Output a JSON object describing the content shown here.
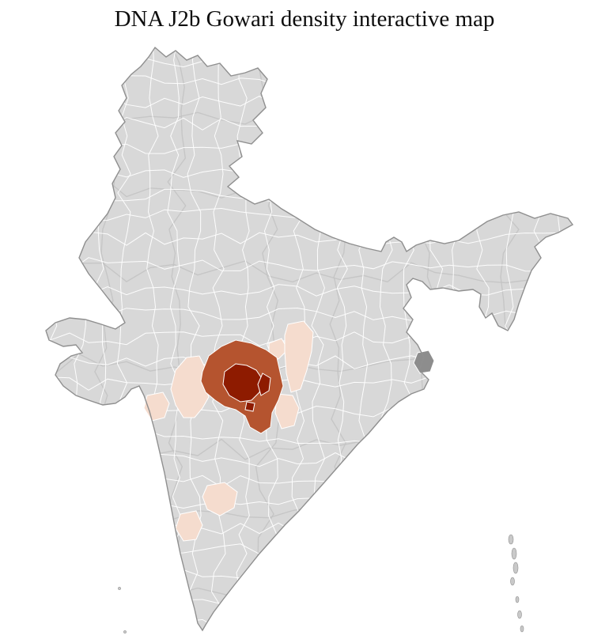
{
  "title": "DNA J2b Gowari density interactive map",
  "map": {
    "name": "india-district-choropleth",
    "background": "#ffffff",
    "base_fill": "#d8d8d8",
    "district_border": "#ffffff",
    "state_border": "#c2c2c2",
    "outline": "#8f8f8f",
    "island_fill": "#c9c9c9",
    "density_colors": {
      "high": "#8e1b00",
      "medium": "#b5542f",
      "low": "#f5dcce",
      "other": "#8d8d8d"
    },
    "regions": [
      {
        "id": "cluster-west-low",
        "level": "low"
      },
      {
        "id": "cluster-top-low",
        "level": "low"
      },
      {
        "id": "cluster-right-upper-low",
        "level": "low"
      },
      {
        "id": "cluster-right-lower-low",
        "level": "low"
      },
      {
        "id": "west-outlier-low",
        "level": "low"
      },
      {
        "id": "south-outlier-upper-low",
        "level": "low"
      },
      {
        "id": "south-outlier-lower-low",
        "level": "low"
      },
      {
        "id": "cluster-medium-ring",
        "level": "medium"
      },
      {
        "id": "core-main-high",
        "level": "high"
      },
      {
        "id": "core-east-high",
        "level": "high"
      },
      {
        "id": "core-south-high",
        "level": "high"
      },
      {
        "id": "east-gray-district",
        "level": "other"
      }
    ]
  }
}
